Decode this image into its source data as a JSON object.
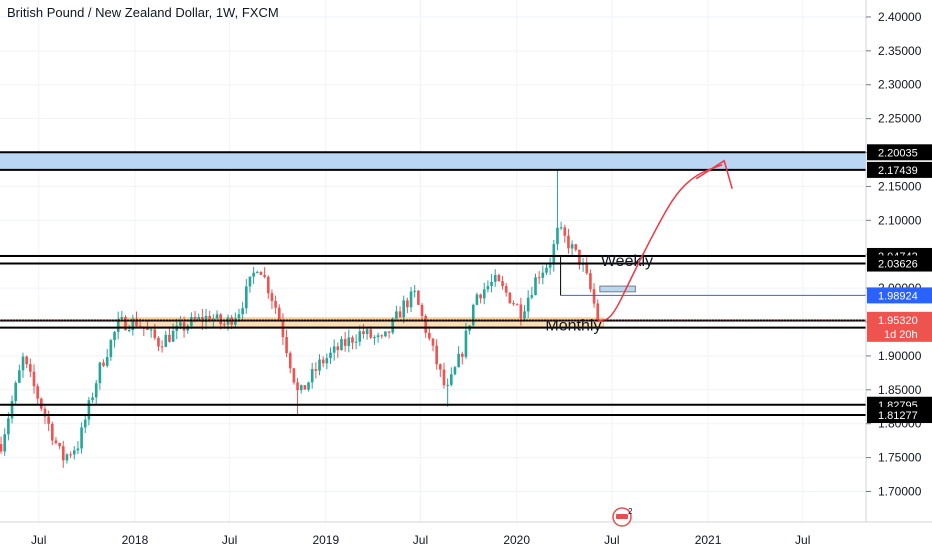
{
  "chart_data": {
    "type": "candlestick",
    "title": "British Pound / New Zealand Dollar, 1W, FXCM",
    "xlabel": "",
    "ylabel": "",
    "ylim": [
      1.655,
      2.425
    ],
    "xlim": [
      "2017-04-18",
      "2021-10-30"
    ],
    "y_ticks": [
      1.7,
      1.75,
      1.8,
      1.85,
      1.9,
      1.95,
      2.0,
      2.05,
      2.1,
      2.15,
      2.2,
      2.25,
      2.3,
      2.35,
      2.4
    ],
    "y_tick_labels": [
      "1.70000",
      "1.75000",
      "1.80000",
      "1.85000",
      "1.90000",
      "1.95000",
      "2.00000",
      "2.05000",
      "2.10000",
      "2.15000",
      "2.20000",
      "2.25000",
      "2.30000",
      "2.35000",
      "2.40000"
    ],
    "x_ticks": [
      {
        "date": "2017-07-01",
        "label": "Jul"
      },
      {
        "date": "2018-01-01",
        "label": "2018"
      },
      {
        "date": "2018-07-01",
        "label": "Jul"
      },
      {
        "date": "2019-01-01",
        "label": "2019"
      },
      {
        "date": "2019-07-01",
        "label": "Jul"
      },
      {
        "date": "2020-01-01",
        "label": "2020"
      },
      {
        "date": "2020-07-01",
        "label": "Jul"
      },
      {
        "date": "2021-01-01",
        "label": "2021"
      },
      {
        "date": "2021-07-01",
        "label": "Jul"
      }
    ],
    "price_path": [
      {
        "date": "2017-04-20",
        "price": 1.77
      },
      {
        "date": "2017-06-01",
        "price": 1.895
      },
      {
        "date": "2017-07-10",
        "price": 1.818
      },
      {
        "date": "2017-08-15",
        "price": 1.748
      },
      {
        "date": "2017-09-15",
        "price": 1.77
      },
      {
        "date": "2017-10-25",
        "price": 1.88
      },
      {
        "date": "2017-12-01",
        "price": 1.948
      },
      {
        "date": "2018-01-05",
        "price": 1.95
      },
      {
        "date": "2018-02-15",
        "price": 1.92
      },
      {
        "date": "2018-03-20",
        "price": 1.935
      },
      {
        "date": "2018-04-15",
        "price": 1.948
      },
      {
        "date": "2018-05-25",
        "price": 1.958
      },
      {
        "date": "2018-06-20",
        "price": 1.945
      },
      {
        "date": "2018-07-20",
        "price": 1.968
      },
      {
        "date": "2018-08-25",
        "price": 2.038
      },
      {
        "date": "2018-10-01",
        "price": 1.965
      },
      {
        "date": "2018-11-10",
        "price": 1.84
      },
      {
        "date": "2018-12-20",
        "price": 1.888
      },
      {
        "date": "2019-02-01",
        "price": 1.915
      },
      {
        "date": "2019-03-10",
        "price": 1.935
      },
      {
        "date": "2019-04-20",
        "price": 1.92
      },
      {
        "date": "2019-05-30",
        "price": 1.975
      },
      {
        "date": "2019-06-20",
        "price": 1.99
      },
      {
        "date": "2019-07-20",
        "price": 1.918
      },
      {
        "date": "2019-08-20",
        "price": 1.845
      },
      {
        "date": "2019-09-20",
        "price": 1.91
      },
      {
        "date": "2019-10-15",
        "price": 1.99
      },
      {
        "date": "2019-11-20",
        "price": 2.01
      },
      {
        "date": "2019-12-15",
        "price": 1.99
      },
      {
        "date": "2020-01-10",
        "price": 1.965
      },
      {
        "date": "2020-02-10",
        "price": 2.02
      },
      {
        "date": "2020-03-05",
        "price": 2.04
      },
      {
        "date": "2020-03-20",
        "price": 2.085
      },
      {
        "date": "2020-04-10",
        "price": 2.065
      },
      {
        "date": "2020-05-05",
        "price": 2.035
      },
      {
        "date": "2020-05-20",
        "price": 2.0
      },
      {
        "date": "2020-06-05",
        "price": 1.953
      }
    ],
    "extremes": [
      {
        "date": "2018-11-10",
        "price": 1.8128
      },
      {
        "date": "2019-08-20",
        "price": 1.825
      },
      {
        "date": "2020-03-16",
        "price": 2.1745
      }
    ],
    "horizontal_levels": [
      {
        "price": 2.20035,
        "label": "2.20035"
      },
      {
        "price": 2.17439,
        "label": "2.17439"
      },
      {
        "price": 2.04742,
        "label": "2.04742"
      },
      {
        "price": 2.03626,
        "label": "2.03626"
      },
      {
        "price": 1.9522,
        "label": "1.95220"
      },
      {
        "price": 1.94176,
        "label": "1.94176"
      },
      {
        "price": 1.82795,
        "label": "1.82795"
      },
      {
        "price": 1.81277,
        "label": "1.81277"
      }
    ],
    "supply_zone": {
      "from": 2.17439,
      "to": 2.20035
    },
    "monthly_zone": {
      "start": "2017-12-01",
      "end": "2020-06-15",
      "from": 1.943,
      "to": 1.956
    },
    "weekly_box": {
      "start": "2020-06-08",
      "end": "2020-08-15",
      "from": 1.9945,
      "to": 2.003
    },
    "blue_line": {
      "start": "2020-03-25",
      "price": 1.98924,
      "label": "1.98924"
    },
    "current_price": {
      "price": 1.9532,
      "label": "1.95320",
      "countdown": "1d 20h"
    },
    "annotations": [
      {
        "text": "Weekly",
        "date": "2020-06-10",
        "price": 2.0325
      },
      {
        "text": "Monthly",
        "date": "2020-02-25",
        "price": 1.9375
      }
    ],
    "projection": [
      {
        "date": "2020-06-05",
        "price": 1.952
      },
      {
        "date": "2020-07-01",
        "price": 1.955
      },
      {
        "date": "2020-08-10",
        "price": 2.02
      },
      {
        "date": "2020-09-25",
        "price": 2.09
      },
      {
        "date": "2020-11-01",
        "price": 2.14
      },
      {
        "date": "2020-12-10",
        "price": 2.168
      },
      {
        "date": "2021-01-28",
        "price": 2.182
      }
    ],
    "colors": {
      "up": "#26a69a",
      "down": "#ef5350",
      "zone_fill": "#bbd6f3",
      "monthly_fill": "#fbe0b5",
      "blue_line": "#2962ff",
      "projection": "#f23645",
      "grid": "#f0f3fa",
      "price_tag": "#ef5350"
    },
    "grid": true,
    "logo": "tradingview-logo-icon"
  }
}
